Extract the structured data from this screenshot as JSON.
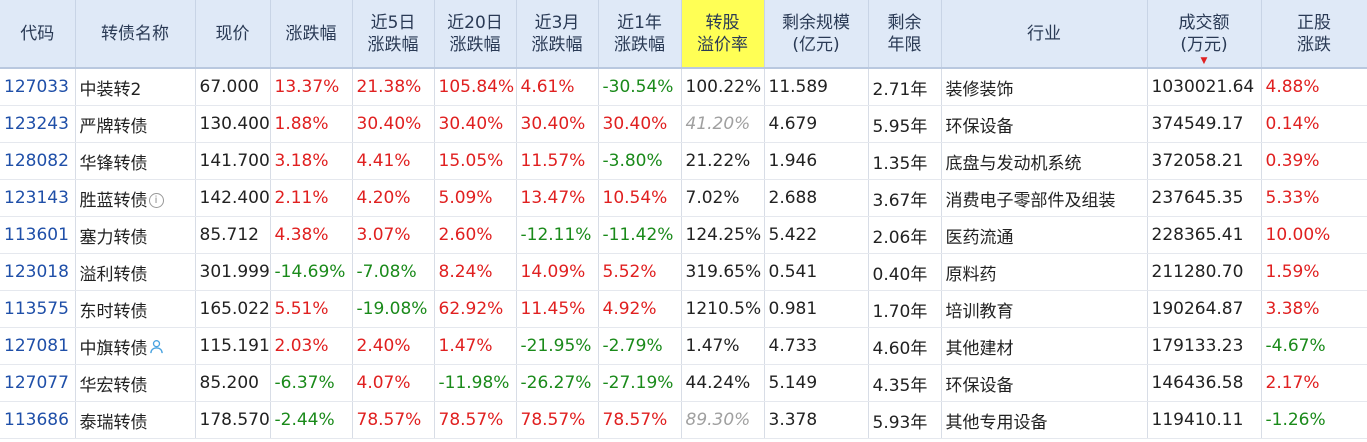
{
  "headers": [
    {
      "key": "code",
      "label": "代码"
    },
    {
      "key": "name",
      "label": "转债名称"
    },
    {
      "key": "price",
      "label": "现价"
    },
    {
      "key": "chg",
      "label": "涨跌幅"
    },
    {
      "key": "chg5d",
      "label": "近5日涨跌幅"
    },
    {
      "key": "chg20d",
      "label": "近20日涨跌幅"
    },
    {
      "key": "chg3m",
      "label": "近3月涨跌幅"
    },
    {
      "key": "chg1y",
      "label": "近1年涨跌幅"
    },
    {
      "key": "premium",
      "label": "转股溢价率"
    },
    {
      "key": "scale",
      "label": "剩余规模(亿元)"
    },
    {
      "key": "years",
      "label": "剩余年限"
    },
    {
      "key": "industry",
      "label": "行业"
    },
    {
      "key": "turnover",
      "label": "成交额(万元)"
    },
    {
      "key": "stock_chg",
      "label": "正股涨跌"
    }
  ],
  "header_lines": [
    [
      "代码"
    ],
    [
      "转债名称"
    ],
    [
      "现价"
    ],
    [
      "涨跌幅"
    ],
    [
      "近5日",
      "涨跌幅"
    ],
    [
      "近20日",
      "涨跌幅"
    ],
    [
      "近3月",
      "涨跌幅"
    ],
    [
      "近1年",
      "涨跌幅"
    ],
    [
      "转股",
      "溢价率"
    ],
    [
      "剩余规模",
      "(亿元)"
    ],
    [
      "剩余",
      "年限"
    ],
    [
      "行业"
    ],
    [
      "成交额",
      "(万元)"
    ],
    [
      "正股",
      "涨跌"
    ]
  ],
  "highlight_header": "premium",
  "sort_column": "turnover",
  "sort_indicator": "▼",
  "colors": {
    "positive": "#e02020",
    "negative": "#1a8a1a",
    "code": "#1f4fa8",
    "header_bg": "#dfe9f7",
    "highlight": "#ffff55"
  },
  "rows": [
    {
      "code": "127033",
      "name": "中装转2",
      "price": "67.000",
      "chg": "13.37%",
      "chg5d": "21.38%",
      "chg20d": "105.84%",
      "chg3m": "4.61%",
      "chg1y": "-30.54%",
      "premium": "100.22%",
      "scale": "11.589",
      "years": "2.71年",
      "industry": "装修装饰",
      "turnover": "1030021.64",
      "stock_chg": "4.88%"
    },
    {
      "code": "123243",
      "name": "严牌转债",
      "price": "130.400",
      "chg": "1.88%",
      "chg5d": "30.40%",
      "chg20d": "30.40%",
      "chg3m": "30.40%",
      "chg1y": "30.40%",
      "premium": "41.20%",
      "premium_dim": true,
      "scale": "4.679",
      "years": "5.95年",
      "industry": "环保设备",
      "turnover": "374549.17",
      "stock_chg": "0.14%"
    },
    {
      "code": "128082",
      "name": "华锋转债",
      "price": "141.700",
      "chg": "3.18%",
      "chg5d": "4.41%",
      "chg20d": "15.05%",
      "chg3m": "11.57%",
      "chg1y": "-3.80%",
      "premium": "21.22%",
      "scale": "1.946",
      "years": "1.35年",
      "industry": "底盘与发动机系统",
      "turnover": "372058.21",
      "stock_chg": "0.39%"
    },
    {
      "code": "123143",
      "name": "胜蓝转债",
      "name_icon": "info-icon",
      "price": "142.400",
      "chg": "2.11%",
      "chg5d": "4.20%",
      "chg20d": "5.09%",
      "chg3m": "13.47%",
      "chg1y": "10.54%",
      "premium": "7.02%",
      "scale": "2.688",
      "years": "3.67年",
      "industry": "消费电子零部件及组装",
      "turnover": "237645.35",
      "stock_chg": "5.33%"
    },
    {
      "code": "113601",
      "name": "塞力转债",
      "price": "85.712",
      "chg": "4.38%",
      "chg5d": "3.07%",
      "chg20d": "2.60%",
      "chg3m": "-12.11%",
      "chg1y": "-11.42%",
      "premium": "124.25%",
      "scale": "5.422",
      "years": "2.06年",
      "industry": "医药流通",
      "turnover": "228365.41",
      "stock_chg": "10.00%"
    },
    {
      "code": "123018",
      "name": "溢利转债",
      "price": "301.999",
      "chg": "-14.69%",
      "chg5d": "-7.08%",
      "chg20d": "8.24%",
      "chg3m": "14.09%",
      "chg1y": "5.52%",
      "premium": "319.65%",
      "scale": "0.541",
      "years": "0.40年",
      "industry": "原料药",
      "turnover": "211280.70",
      "stock_chg": "1.59%"
    },
    {
      "code": "113575",
      "name": "东时转债",
      "price": "165.022",
      "chg": "5.51%",
      "chg5d": "-19.08%",
      "chg20d": "62.92%",
      "chg3m": "11.45%",
      "chg1y": "4.92%",
      "premium": "1210.5%",
      "scale": "0.981",
      "years": "1.70年",
      "industry": "培训教育",
      "turnover": "190264.87",
      "stock_chg": "3.38%"
    },
    {
      "code": "127081",
      "name": "中旗转债",
      "name_icon": "user-icon",
      "price": "115.191",
      "chg": "2.03%",
      "chg5d": "2.40%",
      "chg20d": "1.47%",
      "chg3m": "-21.95%",
      "chg1y": "-2.79%",
      "premium": "1.47%",
      "scale": "4.733",
      "years": "4.60年",
      "industry": "其他建材",
      "turnover": "179133.23",
      "stock_chg": "-4.67%"
    },
    {
      "code": "127077",
      "name": "华宏转债",
      "price": "85.200",
      "chg": "-6.37%",
      "chg5d": "4.07%",
      "chg20d": "-11.98%",
      "chg3m": "-26.27%",
      "chg1y": "-27.19%",
      "premium": "44.24%",
      "scale": "5.149",
      "years": "4.35年",
      "industry": "环保设备",
      "turnover": "146436.58",
      "stock_chg": "2.17%"
    },
    {
      "code": "113686",
      "name": "泰瑞转债",
      "price": "178.570",
      "chg": "-2.44%",
      "chg5d": "78.57%",
      "chg20d": "78.57%",
      "chg3m": "78.57%",
      "chg1y": "78.57%",
      "premium": "89.30%",
      "premium_dim": true,
      "scale": "3.378",
      "years": "5.93年",
      "industry": "其他专用设备",
      "turnover": "119410.11",
      "stock_chg": "-1.26%"
    }
  ]
}
